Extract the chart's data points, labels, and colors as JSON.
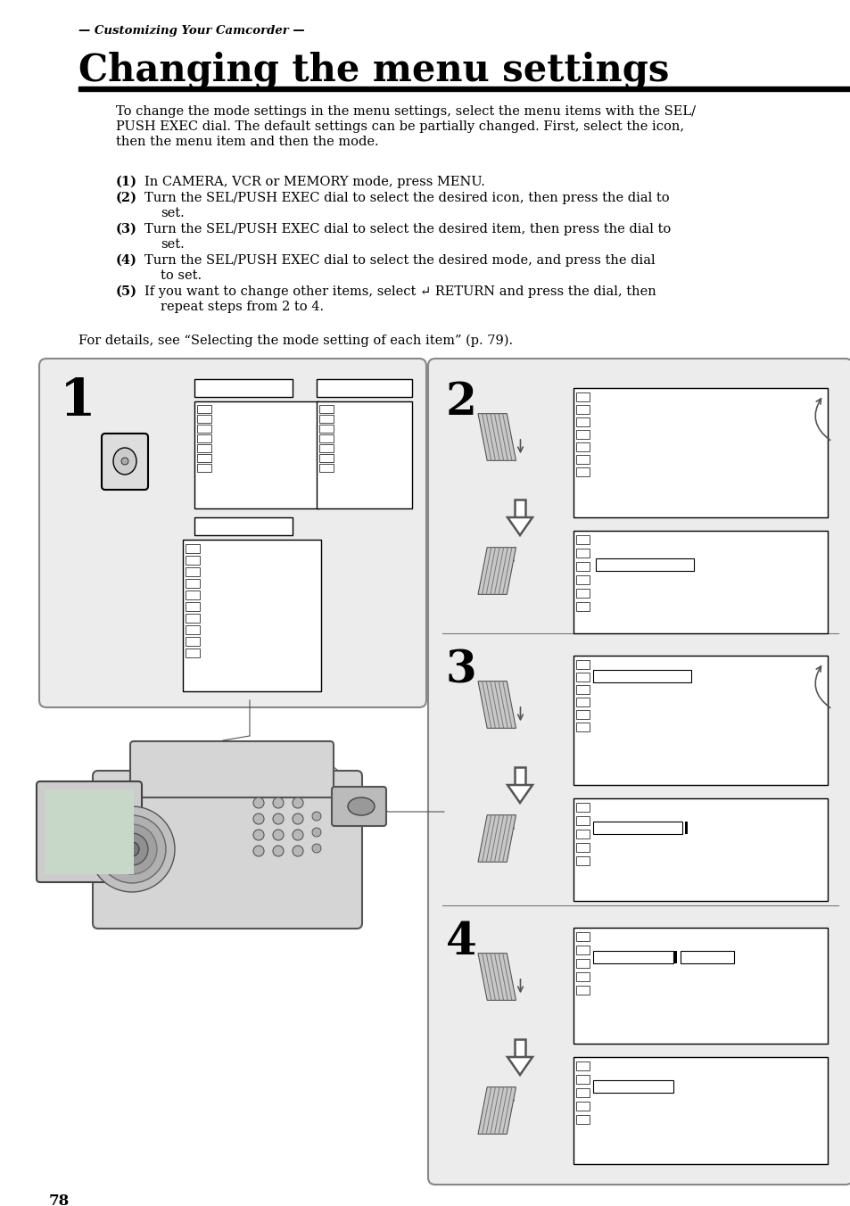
{
  "page_bg": "#ffffff",
  "subtitle": "— Customizing Your Camcorder —",
  "title": "Changing the menu settings",
  "body_text_line1": "To change the mode settings in the menu settings, select the menu items with the SEL/",
  "body_text_line2": "PUSH EXEC dial. The default settings can be partially changed. First, select the icon,",
  "body_text_line3": "then the menu item and then the mode.",
  "step1_num": "(1)",
  "step1_text": "In CAMERA, VCR or MEMORY mode, press MENU.",
  "step2_num": "(2)",
  "step2_text1": "Turn the SEL/PUSH EXEC dial to select the desired icon, then press the dial to",
  "step2_text2": "set.",
  "step3_num": "(3)",
  "step3_text1": "Turn the SEL/PUSH EXEC dial to select the desired item, then press the dial to",
  "step3_text2": "set.",
  "step4_num": "(4)",
  "step4_text1": "Turn the SEL/PUSH EXEC dial to select the desired mode, and press the dial",
  "step4_text2": "to set.",
  "step5_num": "(5)",
  "step5_text1": "If you want to change other items, select ↵ RETURN and press the dial, then",
  "step5_text2": "repeat steps from 2 to 4.",
  "details_text": "For details, see “Selecting the mode setting of each item” (p. 79).",
  "page_number": "78",
  "box_bg": "#ececec",
  "box_edge": "#888888",
  "screen_bg": "#ffffff",
  "icon_color": "#333333"
}
